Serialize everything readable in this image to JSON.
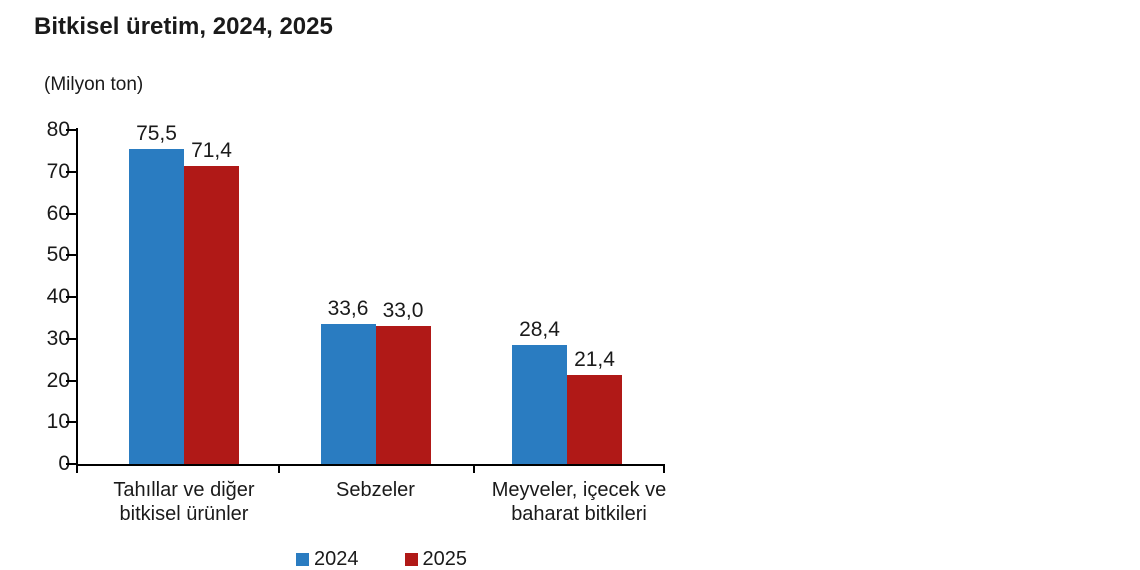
{
  "chart_data": {
    "type": "bar",
    "title": "Bitkisel üretim, 2024, 2025",
    "ylabel": "(Milyon ton)",
    "xlabel": "",
    "categories": [
      "Tahıllar ve diğer bitkisel ürünler",
      "Sebzeler",
      "Meyveler, içecek ve baharat bitkileri"
    ],
    "category_display": [
      "Tahıllar ve diğer\nbitkisel ürünler",
      "Sebzeler",
      "Meyveler, içecek ve\nbaharat bitkileri"
    ],
    "series": [
      {
        "name": "2024",
        "color": "#2A7CC1",
        "values": [
          75.5,
          33.6,
          28.4
        ],
        "value_labels": [
          "75,5",
          "33,6",
          "28,4"
        ]
      },
      {
        "name": "2025",
        "color": "#B01917",
        "values": [
          71.4,
          33.0,
          21.4
        ],
        "value_labels": [
          "71,4",
          "33,0",
          "21,4"
        ]
      }
    ],
    "ylim": [
      0,
      80
    ],
    "yticks": [
      0,
      10,
      20,
      30,
      40,
      50,
      60,
      70,
      80
    ],
    "grid": false,
    "legend_position": "bottom",
    "decimal_separator": ","
  },
  "colors": {
    "series_2024": "#2A7CC1",
    "series_2025": "#B01917",
    "axis": "#000000",
    "text": "#1a1a1a",
    "background": "#ffffff"
  }
}
